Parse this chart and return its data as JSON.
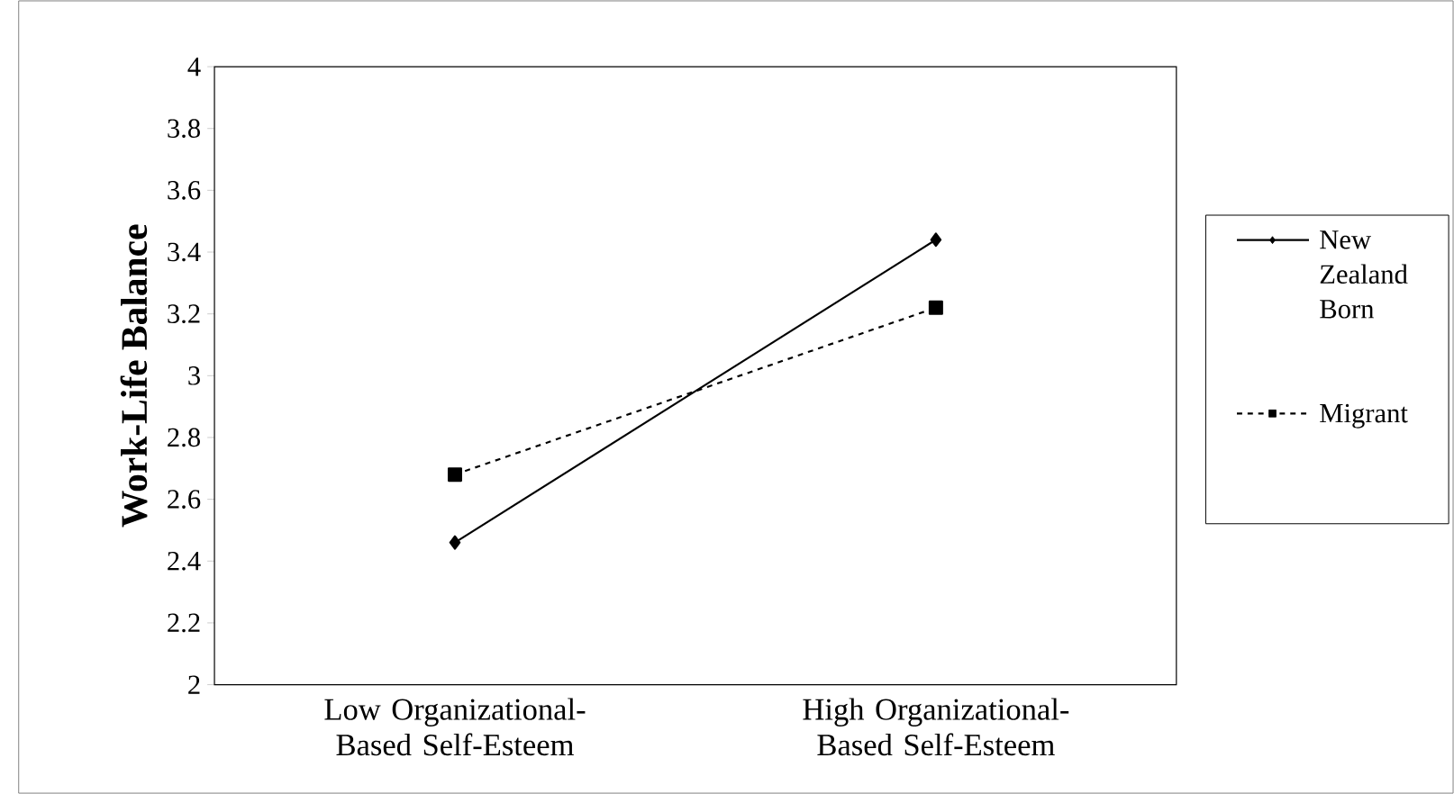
{
  "chart_data": {
    "type": "line",
    "ylabel": "Work-Life Balance",
    "categories": [
      "Low Organizational-Based Self-Esteem",
      "High Organizational-Based Self-Esteem"
    ],
    "series": [
      {
        "name": "New Zealand Born",
        "color": "#000000",
        "values": [
          2.46,
          3.44
        ],
        "marker": "diamond",
        "line_style": "solid"
      },
      {
        "name": "Migrant",
        "color": "#000000",
        "values": [
          2.68,
          3.22
        ],
        "marker": "square",
        "line_style": "dashed"
      }
    ],
    "ylim": [
      2,
      4
    ],
    "yticks": [
      2,
      2.2,
      2.4,
      2.6,
      2.8,
      3,
      3.2,
      3.4,
      3.6,
      3.8,
      4
    ],
    "grid": false,
    "legend": "right"
  }
}
